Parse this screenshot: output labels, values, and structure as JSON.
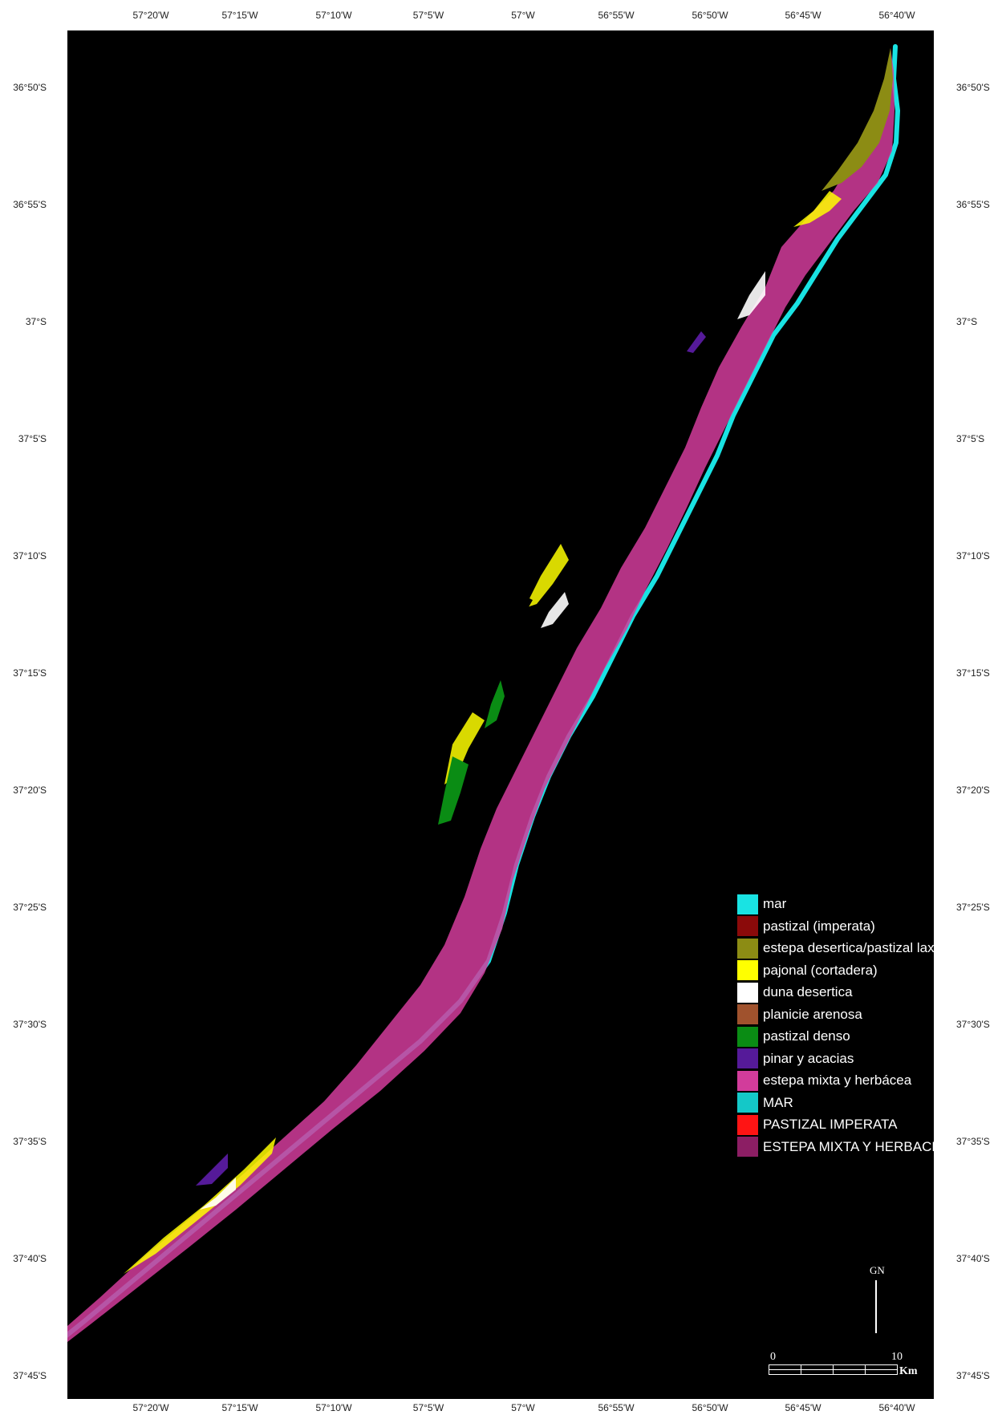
{
  "map": {
    "background_color": "#000000",
    "graticule": {
      "longitude_labels": [
        "57°20'W",
        "57°15'W",
        "57°10'W",
        "57°5'W",
        "57°W",
        "56°55'W",
        "56°50'W",
        "56°45'W",
        "56°40'W"
      ],
      "latitude_labels": [
        "36°50'S",
        "36°55'S",
        "37°S",
        "37°5'S",
        "37°10'S",
        "37°15'S",
        "37°20'S",
        "37°25'S",
        "37°30'S",
        "37°35'S",
        "37°40'S",
        "37°45'S"
      ]
    },
    "legend": [
      {
        "label": "mar",
        "color": "#19e3e3"
      },
      {
        "label": "pastizal (imperata)",
        "color": "#8b0a0a"
      },
      {
        "label": "estepa desertica/pastizal laxo",
        "color": "#8c8c14"
      },
      {
        "label": "pajonal (cortadera)",
        "color": "#ffff00"
      },
      {
        "label": "duna desertica",
        "color": "#ffffff"
      },
      {
        "label": "planicie arenosa",
        "color": "#a0522d"
      },
      {
        "label": "pastizal denso",
        "color": "#0a8c14"
      },
      {
        "label": "pinar y acacias",
        "color": "#551a99"
      },
      {
        "label": "estepa mixta y herbácea",
        "color": "#d23c9b"
      },
      {
        "label": "MAR",
        "color": "#14c8c8"
      },
      {
        "label": "PASTIZAL IMPERATA",
        "color": "#ff1414"
      },
      {
        "label": "ESTEPA MIXTA Y HERBACEA",
        "color": "#8c1e64"
      }
    ],
    "north_arrow": {
      "label": "GN"
    },
    "scale_bar": {
      "start_label": "0",
      "end_label": "10",
      "unit_label": "Km"
    }
  }
}
